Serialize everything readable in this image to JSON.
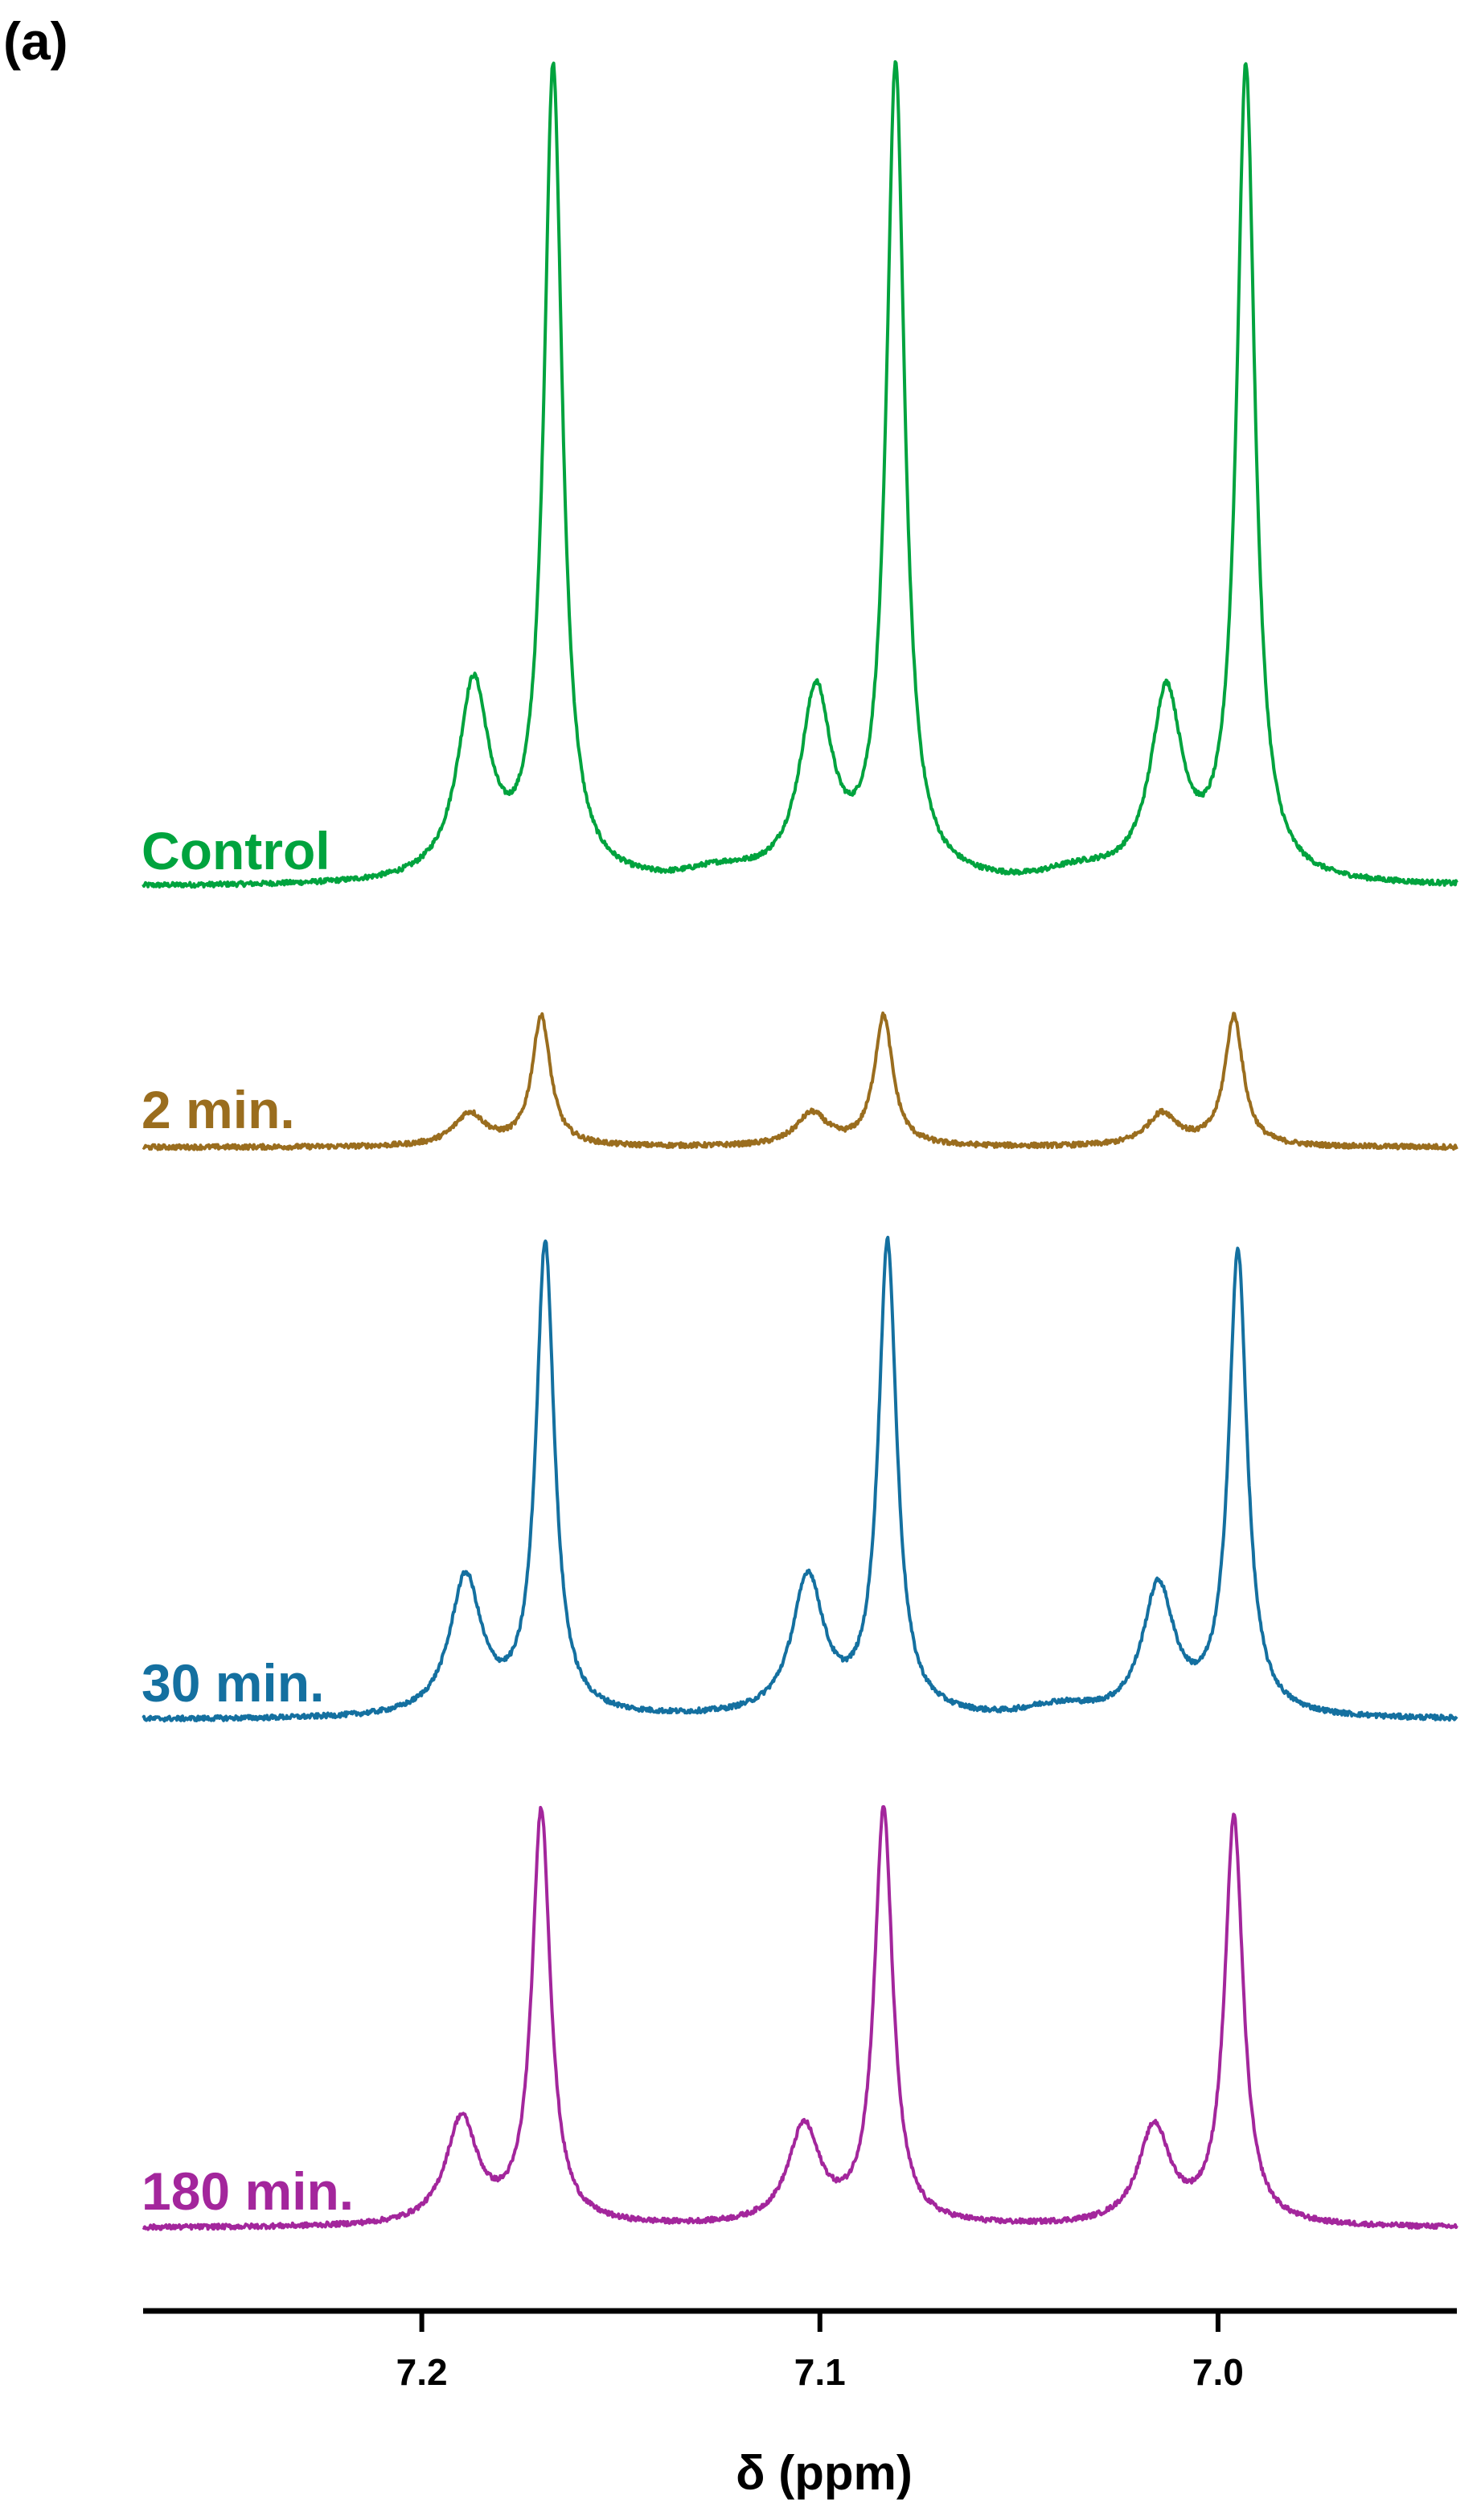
{
  "panel_label": "(a)",
  "chart_data": {
    "type": "line",
    "title": "",
    "xlabel": "δ (ppm)",
    "ylabel": "",
    "xlim": [
      7.27,
      6.94
    ],
    "x_reversed": true,
    "y_axis_shown": false,
    "grid": false,
    "legend": "inline labels at left of each trace",
    "x_ticks": [
      {
        "value": 7.2,
        "label": "7.2"
      },
      {
        "value": 7.1,
        "label": "7.1"
      },
      {
        "value": 7.0,
        "label": "7.0"
      }
    ],
    "series": [
      {
        "name": "Control",
        "color": "#00a33e",
        "peak_shifts_ppm": [
          7.187,
          7.167,
          7.101,
          7.081,
          7.013,
          6.993
        ],
        "relative_intensities": [
          0.24,
          1.0,
          0.23,
          1.0,
          0.23,
          1.0
        ],
        "minor_shoulders_ppm": [
          7.125,
          7.035
        ]
      },
      {
        "name": "2 min.",
        "color": "#9a6d1e",
        "peak_shifts_ppm": [
          7.188,
          7.17,
          7.102,
          7.084,
          7.014,
          6.996
        ],
        "relative_intensities": [
          0.04,
          0.16,
          0.04,
          0.16,
          0.04,
          0.16
        ],
        "minor_shoulders_ppm": []
      },
      {
        "name": "30 min.",
        "color": "#1470a0",
        "peak_shifts_ppm": [
          7.189,
          7.169,
          7.103,
          7.083,
          7.015,
          6.995
        ],
        "relative_intensities": [
          0.17,
          0.58,
          0.17,
          0.58,
          0.16,
          0.57
        ],
        "minor_shoulders_ppm": [
          7.04
        ]
      },
      {
        "name": "180 min.",
        "color": "#a3269c",
        "peak_shifts_ppm": [
          7.19,
          7.17,
          7.104,
          7.084,
          7.016,
          6.996
        ],
        "relative_intensities": [
          0.13,
          0.51,
          0.12,
          0.51,
          0.12,
          0.5
        ],
        "minor_shoulders_ppm": []
      }
    ]
  }
}
